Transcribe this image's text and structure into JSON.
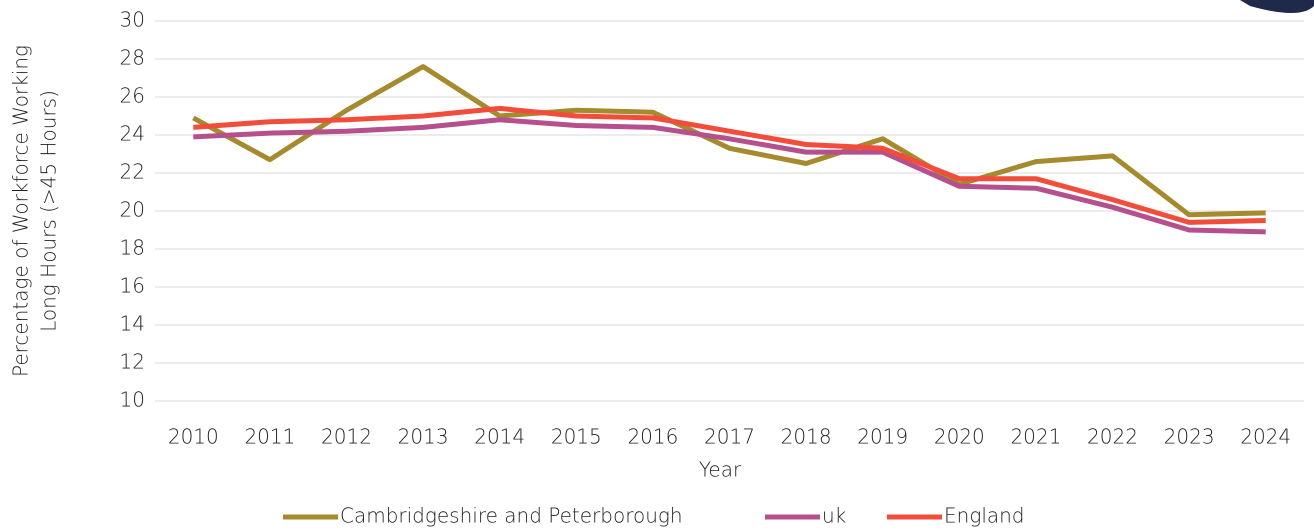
{
  "chart_data": {
    "type": "line",
    "y_label": [
      "Percentage of Workforce Working",
      "Long Hours (>45 Hours)"
    ],
    "x_label": "Year",
    "categories": [
      "2010",
      "2011",
      "2012",
      "2013",
      "2014",
      "2015",
      "2016",
      "2017",
      "2018",
      "2019",
      "2020",
      "2021",
      "2022",
      "2023",
      "2024"
    ],
    "series": [
      {
        "name": "Cambridgeshire and Peterborough",
        "color": "#a58a2e",
        "values": [
          24.9,
          22.7,
          25.3,
          27.6,
          25.0,
          25.3,
          25.2,
          23.3,
          22.5,
          23.8,
          21.4,
          22.6,
          22.9,
          19.8,
          19.9
        ]
      },
      {
        "name": "uk",
        "color": "#b5508c",
        "values": [
          23.9,
          24.1,
          24.2,
          24.4,
          24.8,
          24.5,
          24.4,
          23.8,
          23.1,
          23.1,
          21.3,
          21.2,
          20.2,
          19.0,
          18.9
        ]
      },
      {
        "name": "England",
        "color": "#f24c3b",
        "values": [
          24.4,
          24.7,
          24.8,
          25.0,
          25.4,
          25.0,
          24.9,
          24.2,
          23.5,
          23.3,
          21.7,
          21.7,
          20.6,
          19.4,
          19.5
        ]
      }
    ],
    "ylim": [
      10,
      30
    ],
    "yticks": [
      10,
      12,
      14,
      16,
      18,
      20,
      22,
      24,
      26,
      28,
      30
    ],
    "grid": true,
    "legend": "bottom"
  }
}
